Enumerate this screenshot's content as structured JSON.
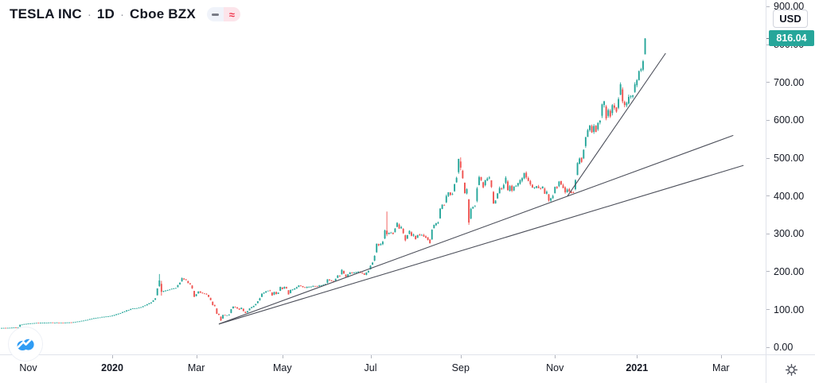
{
  "header": {
    "symbol": "TESLA INC",
    "separator": "·",
    "interval": "1D",
    "exchange": "Cboe BZX",
    "pills": {
      "dash": "–",
      "approx": "≈"
    }
  },
  "price_scale": {
    "currency_button": "USD",
    "last_price_label": "816.04",
    "ticks": [
      {
        "label": "0.00",
        "value": 0
      },
      {
        "label": "100.00",
        "value": 100
      },
      {
        "label": "200.00",
        "value": 200
      },
      {
        "label": "300.00",
        "value": 300
      },
      {
        "label": "400.00",
        "value": 400
      },
      {
        "label": "500.00",
        "value": 500
      },
      {
        "label": "600.00",
        "value": 600
      },
      {
        "label": "700.00",
        "value": 700
      },
      {
        "label": "800.00",
        "value": 800
      },
      {
        "label": "900.00",
        "value": 900
      }
    ]
  },
  "time_scale": {
    "ticks": [
      {
        "label": "Nov",
        "day": 13,
        "bold": false
      },
      {
        "label": "2020",
        "day": 54,
        "bold": true
      },
      {
        "label": "Mar",
        "day": 95,
        "bold": false
      },
      {
        "label": "May",
        "day": 137,
        "bold": false
      },
      {
        "label": "Jul",
        "day": 180,
        "bold": false
      },
      {
        "label": "Sep",
        "day": 224,
        "bold": false
      },
      {
        "label": "Nov",
        "day": 270,
        "bold": false
      },
      {
        "label": "2021",
        "day": 310,
        "bold": true
      },
      {
        "label": "Mar",
        "day": 351,
        "bold": false
      }
    ]
  },
  "chart_data": {
    "type": "candlestick",
    "title": "TESLA INC · 1D · Cboe BZX",
    "currency": "USD",
    "last_price": 816.04,
    "ylim": [
      0,
      917
    ],
    "y_ticks": [
      0,
      100,
      200,
      300,
      400,
      500,
      600,
      700,
      800,
      900
    ],
    "x_range_days": [
      0,
      372
    ],
    "grid": false,
    "legend_position": "top-left",
    "price_path": [
      [
        0,
        51.5
      ],
      [
        4,
        52
      ],
      [
        8,
        52.5
      ],
      [
        9,
        60
      ],
      [
        13,
        63
      ],
      [
        18,
        65
      ],
      [
        24,
        66
      ],
      [
        30,
        65.5
      ],
      [
        34,
        66
      ],
      [
        40,
        71
      ],
      [
        46,
        78
      ],
      [
        50,
        81
      ],
      [
        54,
        84
      ],
      [
        55,
        86
      ],
      [
        58,
        91
      ],
      [
        61,
        98
      ],
      [
        64,
        103
      ],
      [
        67,
        105
      ],
      [
        69,
        109
      ],
      [
        71,
        114
      ],
      [
        73,
        119
      ],
      [
        75,
        130
      ],
      [
        76,
        156
      ],
      [
        77,
        177
      ],
      [
        78,
        147
      ],
      [
        80,
        150
      ],
      [
        82,
        153
      ],
      [
        85,
        157
      ],
      [
        87,
        171
      ],
      [
        88,
        183
      ],
      [
        90,
        178
      ],
      [
        91,
        170
      ],
      [
        92,
        167
      ],
      [
        93,
        156
      ],
      [
        94,
        134
      ],
      [
        96,
        148
      ],
      [
        98,
        143
      ],
      [
        100,
        141
      ],
      [
        102,
        125
      ],
      [
        103,
        112
      ],
      [
        104,
        109
      ],
      [
        105,
        89
      ],
      [
        106,
        86
      ],
      [
        107,
        72
      ],
      [
        108,
        86
      ],
      [
        110,
        85
      ],
      [
        111,
        87
      ],
      [
        112,
        101
      ],
      [
        113,
        108
      ],
      [
        114,
        106
      ],
      [
        115,
        103
      ],
      [
        116,
        100
      ],
      [
        117,
        105
      ],
      [
        118,
        96
      ],
      [
        119,
        91
      ],
      [
        120,
        96
      ],
      [
        121,
        103
      ],
      [
        123,
        110
      ],
      [
        124,
        115
      ],
      [
        126,
        130
      ],
      [
        127,
        142
      ],
      [
        128,
        145
      ],
      [
        130,
        150
      ],
      [
        131,
        149
      ],
      [
        132,
        137
      ],
      [
        133,
        146
      ],
      [
        134,
        141
      ],
      [
        135,
        145
      ],
      [
        136,
        160
      ],
      [
        137,
        154
      ],
      [
        138,
        160
      ],
      [
        139,
        156
      ],
      [
        140,
        140
      ],
      [
        141,
        152
      ],
      [
        143,
        156
      ],
      [
        145,
        164
      ],
      [
        146,
        162
      ],
      [
        148,
        158
      ],
      [
        150,
        160
      ],
      [
        152,
        163
      ],
      [
        154,
        162
      ],
      [
        156,
        164
      ],
      [
        158,
        167
      ],
      [
        159,
        180
      ],
      [
        161,
        176
      ],
      [
        162,
        173
      ],
      [
        164,
        190
      ],
      [
        165,
        188
      ],
      [
        166,
        205
      ],
      [
        167,
        195
      ],
      [
        168,
        187
      ],
      [
        170,
        198
      ],
      [
        172,
        198
      ],
      [
        174,
        200
      ],
      [
        176,
        195
      ],
      [
        177,
        192
      ],
      [
        179,
        202
      ],
      [
        180,
        216
      ],
      [
        181,
        224
      ],
      [
        182,
        242
      ],
      [
        183,
        274
      ],
      [
        184,
        270
      ],
      [
        185,
        273
      ],
      [
        186,
        279
      ],
      [
        187,
        309
      ],
      [
        188,
        299
      ],
      [
        190,
        303
      ],
      [
        191,
        300
      ],
      [
        193,
        329
      ],
      [
        194,
        314
      ],
      [
        195,
        318
      ],
      [
        196,
        302
      ],
      [
        197,
        283
      ],
      [
        199,
        308
      ],
      [
        200,
        295
      ],
      [
        201,
        298
      ],
      [
        202,
        286
      ],
      [
        203,
        297
      ],
      [
        205,
        297
      ],
      [
        207,
        290
      ],
      [
        208,
        284
      ],
      [
        209,
        275
      ],
      [
        210,
        311
      ],
      [
        211,
        324
      ],
      [
        213,
        330
      ],
      [
        214,
        367
      ],
      [
        215,
        377
      ],
      [
        216,
        376
      ],
      [
        217,
        400
      ],
      [
        218,
        410
      ],
      [
        219,
        403
      ],
      [
        220,
        405
      ],
      [
        221,
        431
      ],
      [
        222,
        448
      ],
      [
        223,
        498
      ],
      [
        224,
        475
      ],
      [
        225,
        447
      ],
      [
        226,
        407
      ],
      [
        227,
        418
      ],
      [
        228,
        330
      ],
      [
        229,
        366
      ],
      [
        230,
        371
      ],
      [
        231,
        373
      ],
      [
        232,
        420
      ],
      [
        233,
        450
      ],
      [
        234,
        442
      ],
      [
        235,
        423
      ],
      [
        236,
        442
      ],
      [
        238,
        449
      ],
      [
        239,
        424
      ],
      [
        240,
        380
      ],
      [
        241,
        388
      ],
      [
        242,
        407
      ],
      [
        243,
        421
      ],
      [
        244,
        419
      ],
      [
        245,
        429
      ],
      [
        246,
        448
      ],
      [
        247,
        415
      ],
      [
        248,
        426
      ],
      [
        249,
        414
      ],
      [
        250,
        425
      ],
      [
        251,
        426
      ],
      [
        252,
        434
      ],
      [
        253,
        442
      ],
      [
        254,
        447
      ],
      [
        255,
        461
      ],
      [
        256,
        449
      ],
      [
        257,
        440
      ],
      [
        258,
        431
      ],
      [
        259,
        422
      ],
      [
        260,
        423
      ],
      [
        261,
        426
      ],
      [
        262,
        421
      ],
      [
        263,
        420
      ],
      [
        264,
        425
      ],
      [
        265,
        406
      ],
      [
        266,
        411
      ],
      [
        267,
        388
      ],
      [
        269,
        400
      ],
      [
        270,
        424
      ],
      [
        271,
        421
      ],
      [
        272,
        438
      ],
      [
        273,
        430
      ],
      [
        274,
        421
      ],
      [
        275,
        410
      ],
      [
        276,
        417
      ],
      [
        277,
        412
      ],
      [
        278,
        408
      ],
      [
        279,
        408
      ],
      [
        280,
        442
      ],
      [
        281,
        487
      ],
      [
        282,
        499
      ],
      [
        283,
        490
      ],
      [
        284,
        522
      ],
      [
        285,
        555
      ],
      [
        286,
        574
      ],
      [
        287,
        586
      ],
      [
        288,
        568
      ],
      [
        289,
        585
      ],
      [
        290,
        569
      ],
      [
        291,
        593
      ],
      [
        292,
        599
      ],
      [
        293,
        642
      ],
      [
        294,
        650
      ],
      [
        295,
        605
      ],
      [
        296,
        627
      ],
      [
        297,
        610
      ],
      [
        298,
        640
      ],
      [
        299,
        633
      ],
      [
        300,
        623
      ],
      [
        301,
        656
      ],
      [
        302,
        695
      ],
      [
        303,
        650
      ],
      [
        304,
        640
      ],
      [
        305,
        646
      ],
      [
        306,
        662
      ],
      [
        307,
        664
      ],
      [
        308,
        666
      ],
      [
        309,
        695
      ],
      [
        310,
        706
      ],
      [
        311,
        730
      ],
      [
        312,
        735
      ],
      [
        313,
        756
      ],
      [
        314,
        816
      ]
    ],
    "wick_overrides": {
      "77": [
        194,
        160
      ],
      "78": [
        176,
        137
      ],
      "107": [
        79,
        70
      ],
      "188": [
        359,
        294
      ],
      "224": [
        502,
        468
      ],
      "228": [
        340,
        324
      ],
      "314": [
        817,
        776
      ]
    },
    "trendlines": [
      {
        "day1": 276,
        "price1": 399,
        "day2": 324,
        "price2": 777
      },
      {
        "day1": 106,
        "price1": 62,
        "day2": 357,
        "price2": 560
      },
      {
        "day1": 106,
        "price1": 62,
        "day2": 362,
        "price2": 481
      }
    ],
    "colors": {
      "up": "#26a69a",
      "down": "#ef5350",
      "trendline": "#4c4f5a",
      "badge": "#26a69a"
    }
  }
}
